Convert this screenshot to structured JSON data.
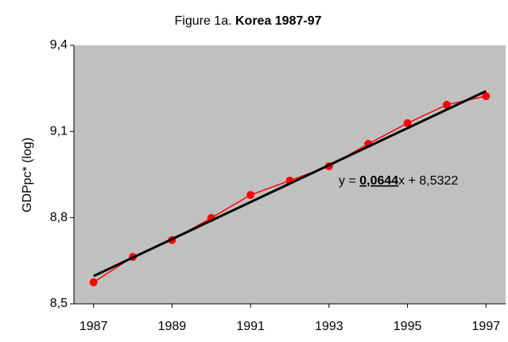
{
  "chart_data": {
    "type": "line",
    "title": {
      "prefix": "Figure 1a. ",
      "main": "Korea 1987-97"
    },
    "y_label": "GDPpc* (log)",
    "equation": {
      "prefix": "y = ",
      "slope": "0,0644",
      "suffix": "x + 8,5322"
    },
    "background": "#c0c0c0",
    "xlim": [
      1986.5,
      1997.5
    ],
    "xticks": [
      1987,
      1989,
      1991,
      1993,
      1995,
      1997
    ],
    "ylim": [
      8.5,
      9.4
    ],
    "yticks": [
      {
        "value": 8.5,
        "label": "8,5"
      },
      {
        "value": 8.8,
        "label": "8,8"
      },
      {
        "value": 9.1,
        "label": "9,1"
      },
      {
        "value": 9.4,
        "label": "9,4"
      }
    ],
    "series": [
      {
        "color": "#ff0000",
        "markers": true,
        "x": [
          1987,
          1988,
          1989,
          1990,
          1991,
          1992,
          1993,
          1994,
          1995,
          1996,
          1997
        ],
        "values": [
          8.575,
          8.663,
          8.722,
          8.799,
          8.879,
          8.929,
          8.979,
          9.057,
          9.129,
          9.193,
          9.223
        ]
      },
      {
        "color": "#000000",
        "markers": false,
        "x": [
          1987,
          1997
        ],
        "values": [
          8.5966,
          9.2406
        ]
      }
    ]
  }
}
